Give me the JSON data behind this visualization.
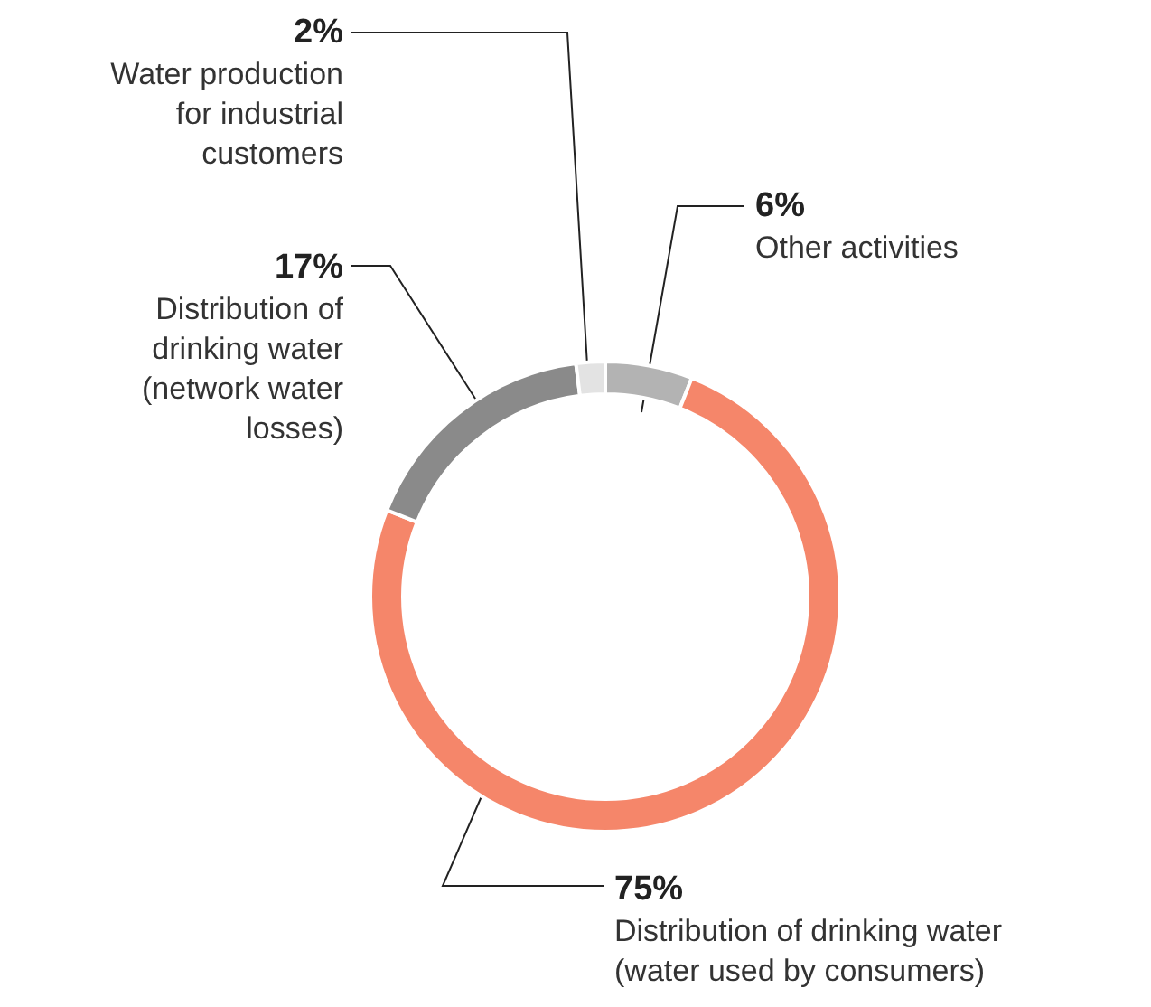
{
  "chart_data": {
    "type": "donut",
    "categories": [
      "Other activities",
      "Distribution of drinking water (water used by consumers)",
      "Distribution of drinking water (network water losses)",
      "Water production for industrial customers"
    ],
    "values": [
      6,
      75,
      17,
      2
    ],
    "colors": [
      "#b3b3b3",
      "#f5866a",
      "#8a8a8a",
      "#e3e3e3"
    ],
    "value_labels": [
      "6%",
      "75%",
      "17%",
      "2%"
    ]
  }
}
